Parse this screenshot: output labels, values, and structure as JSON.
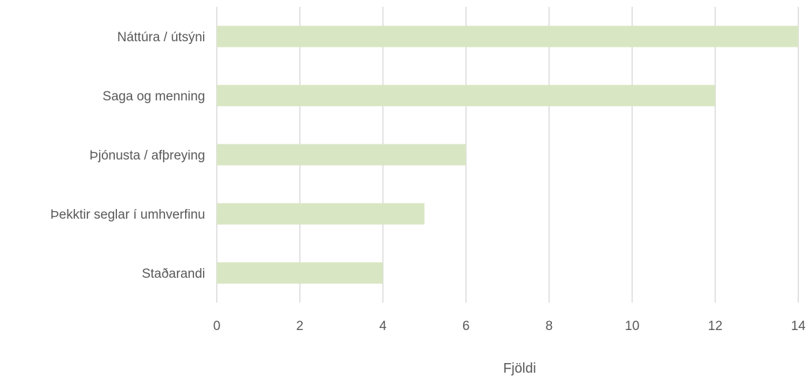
{
  "chart_data": {
    "type": "bar",
    "orientation": "horizontal",
    "categories": [
      "Náttúra / útsýni",
      "Saga og menning",
      "Þjónusta / afþreying",
      "Þekktir seglar í umhverfinu",
      "Staðarandi"
    ],
    "values": [
      14,
      12,
      6,
      5,
      4
    ],
    "xlabel": "Fjöldi",
    "ylabel": "",
    "xlim": [
      0,
      14
    ],
    "xticks": [
      "0",
      "2",
      "4",
      "6",
      "8",
      "10",
      "12",
      "14"
    ],
    "grid": "vertical",
    "legend": "none",
    "bar_color": "#d9e6c3",
    "grid_color": "#d9d9d9",
    "text_color": "#595959"
  }
}
